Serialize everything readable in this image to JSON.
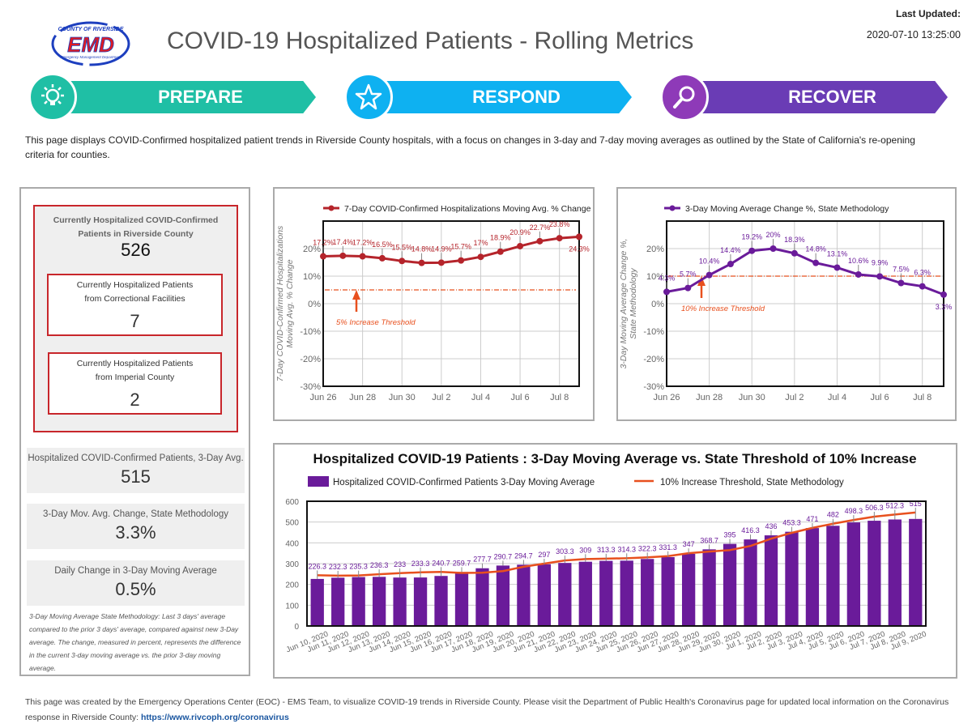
{
  "header": {
    "logo": {
      "top": "COUNTY OF RIVERSIDE",
      "main": "EMD",
      "bottom": "Emergency Management Department"
    },
    "title": "COVID-19 Hospitalized Patients - Rolling Metrics",
    "last_updated_label": "Last Updated:",
    "last_updated_value": "2020-07-10 13:25:00"
  },
  "phases": [
    {
      "label": "PREPARE",
      "icon": "lightbulb-icon",
      "color": "#1fbfa5"
    },
    {
      "label": "RESPOND",
      "icon": "star-icon",
      "color": "#0eb1f1"
    },
    {
      "label": "RECOVER",
      "icon": "magnifier-icon",
      "color": "#6a3cb5"
    }
  ],
  "intro": "This page displays COVID-Confirmed hospitalized patient trends in Riverside County hospitals, with a focus on changes in 3-day and 7-day moving averages as outlined by the State of California's re-opening criteria for counties.",
  "left_panel": {
    "current": {
      "label": "Currently Hospitalized COVID-Confirmed Patients in Riverside County",
      "value": "526"
    },
    "correctional": {
      "label_1": "Currently Hospitalized Patients",
      "label_2": "from Correctional Facilities",
      "value": "7"
    },
    "imperial": {
      "label_1": "Currently Hospitalized Patients",
      "label_2": "from Imperial County",
      "value": "2"
    },
    "kpis": [
      {
        "label": "Hospitalized COVID-Confirmed Patients, 3-Day Avg.",
        "value": "515"
      },
      {
        "label": "3-Day Mov. Avg. Change, State Methodology",
        "value": "3.3%"
      },
      {
        "label": "Daily Change in 3-Day Moving Average",
        "value": "0.5%"
      }
    ],
    "methodology": "3-Day Moving Average State Methodology: Last 3 days' average compared to the prior 3 days' average, compared against new 3-Day average. The change, measured in percent, represents the difference in the current 3-day moving average vs. the prior 3-day moving average."
  },
  "colors": {
    "red": "#c8262b",
    "purple": "#6a1b9a",
    "threshold": "#e8501e",
    "panel_border": "#c8262b"
  },
  "chart_data": [
    {
      "type": "line",
      "title": "",
      "legend": "7-Day COVID-Confirmed Hospitalizations Moving Avg. % Change",
      "legend_position": "top",
      "ylabel": "7-Day COVID-Confirmed Hospitalizations Moving Avg. % Change",
      "x": [
        "Jun 26",
        "Jun 27",
        "Jun 28",
        "Jun 29",
        "Jun 30",
        "Jul 1",
        "Jul 2",
        "Jul 3",
        "Jul 4",
        "Jul 5",
        "Jul 6",
        "Jul 7",
        "Jul 8",
        "Jul 9"
      ],
      "x_ticks": [
        "Jun 26",
        "Jun 28",
        "Jun 30",
        "Jul 2",
        "Jul 4",
        "Jul 6",
        "Jul 8"
      ],
      "values": [
        17.2,
        17.4,
        17.2,
        16.5,
        15.5,
        14.8,
        14.9,
        15.7,
        17,
        18.9,
        20.9,
        22.7,
        23.8,
        24.3
      ],
      "labels": [
        "17.2%",
        "17.4%",
        "17.2%",
        "16.5%",
        "15.5%",
        "14.8%",
        "14.9%",
        "15.7%",
        "17%",
        "18.9%",
        "20.9%",
        "22.7%",
        "23.8%",
        "24.3%"
      ],
      "y_ticks": [
        "-30%",
        "-20%",
        "-10%",
        "0%",
        "10%",
        "20%"
      ],
      "ylim": [
        -30,
        30
      ],
      "threshold": 5,
      "threshold_label": "5% Increase Threshold",
      "grid": true
    },
    {
      "type": "line",
      "title": "",
      "legend": "3-Day Moving Average Change %, State Methodology",
      "legend_position": "top",
      "ylabel": "3-Day Moving Average Change %, State Methodology",
      "x": [
        "Jun 26",
        "Jun 27",
        "Jun 28",
        "Jun 29",
        "Jun 30",
        "Jul 1",
        "Jul 2",
        "Jul 3",
        "Jul 4",
        "Jul 5",
        "Jul 6",
        "Jul 7",
        "Jul 8",
        "Jul 9"
      ],
      "x_ticks": [
        "Jun 26",
        "Jun 28",
        "Jun 30",
        "Jul 2",
        "Jul 4",
        "Jul 6",
        "Jul 8"
      ],
      "values": [
        4.3,
        5.7,
        10.4,
        14.4,
        19.2,
        20,
        18.3,
        14.8,
        13.1,
        10.6,
        9.9,
        7.5,
        6.3,
        3.3
      ],
      "labels": [
        "4.3%",
        "5.7%",
        "10.4%",
        "14.4%",
        "19.2%",
        "20%",
        "18.3%",
        "14.8%",
        "13.1%",
        "10.6%",
        "9.9%",
        "7.5%",
        "6.3%",
        "3.3%"
      ],
      "y_ticks": [
        "-30%",
        "-20%",
        "-10%",
        "0%",
        "10%",
        "20%"
      ],
      "ylim": [
        -30,
        30
      ],
      "threshold": 10,
      "threshold_label": "10% Increase Threshold",
      "grid": true
    },
    {
      "type": "bar",
      "title": "Hospitalized COVID-19 Patients : 3-Day Moving Average vs. State Threshold of 10% Increase",
      "legend_position": "top",
      "categories": [
        "Jun 10, 2020",
        "Jun 11, 2020",
        "Jun 12, 2020",
        "Jun 13, 2020",
        "Jun 14, 2020",
        "Jun 15, 2020",
        "Jun 16, 2020",
        "Jun 17, 2020",
        "Jun 18, 2020",
        "Jun 19, 2020",
        "Jun 20, 2020",
        "Jun 21, 2020",
        "Jun 22, 2020",
        "Jun 23, 2020",
        "Jun 24, 2020",
        "Jun 25, 2020",
        "Jun 26, 2020",
        "Jun 27, 2020",
        "Jun 28, 2020",
        "Jun 29, 2020",
        "Jun 30, 2020",
        "Jul 1, 2020",
        "Jul 2, 2020",
        "Jul 3, 2020",
        "Jul 4, 2020",
        "Jul 5, 2020",
        "Jul 6, 2020",
        "Jul 7, 2020",
        "Jul 8, 2020",
        "Jul 9, 2020"
      ],
      "series": [
        {
          "name": "Hospitalized COVID-Confirmed Patients 3-Day Moving Average",
          "type": "bar",
          "values": [
            226.3,
            232.3,
            235.3,
            236.3,
            233,
            233.3,
            240.7,
            259.7,
            277.7,
            290.7,
            294.7,
            297,
            303.3,
            309,
            313.3,
            314.3,
            322.3,
            331.3,
            347,
            368.7,
            395,
            416.3,
            436,
            453.3,
            471,
            482,
            498.3,
            506.3,
            512.3,
            515
          ]
        },
        {
          "name": "10% Increase Threshold, State Methodology",
          "type": "line",
          "values": [
            244,
            242,
            243,
            249,
            254,
            258,
            260,
            255,
            256,
            264,
            285,
            300,
            315,
            322,
            324,
            326,
            330,
            336,
            350,
            358,
            365,
            385,
            420,
            448,
            472,
            492,
            510,
            526,
            536,
            546
          ]
        }
      ],
      "y_ticks": [
        "0",
        "100",
        "200",
        "300",
        "400",
        "500",
        "600"
      ],
      "ylim": [
        0,
        600
      ],
      "grid": true
    }
  ],
  "footer": {
    "text": "This page was created by the Emergency Operations Center (EOC) - EMS Team, to visualize COVID-19 trends in Riverside County. Please visit the Department of Public Health's Coronavirus page for updated local information on the Coronavirus response in Riverside County: ",
    "link": "https://www.rivcoph.org/coronavirus"
  }
}
